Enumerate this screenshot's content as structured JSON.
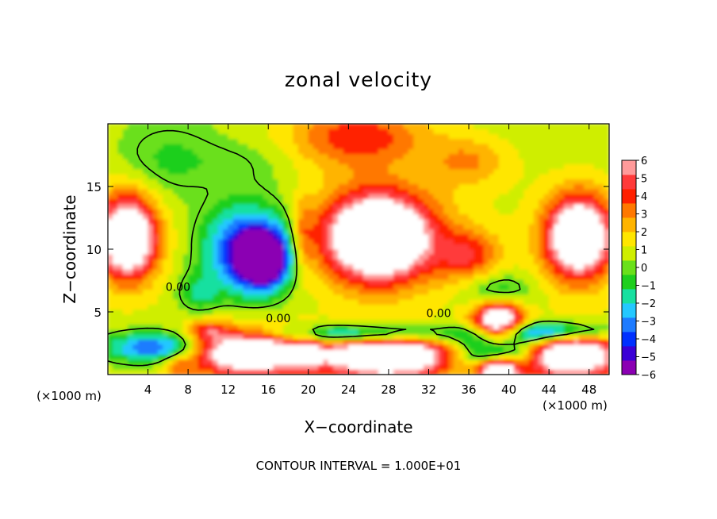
{
  "title": "zonal velocity",
  "footer_note": "CONTOUR INTERVAL = 1.000E+01",
  "colors": {
    "field_palette": [
      "#8b00b3",
      "#3a00d6",
      "#0030ff",
      "#1e7bff",
      "#24c8ff",
      "#18e0a0",
      "#1ecf1e",
      "#6ae01a",
      "#cfee00",
      "#ffe600",
      "#ffb400",
      "#ff7800",
      "#ff2000",
      "#ff3a3a",
      "#ff9a9a"
    ],
    "background": "#ffffff"
  },
  "chart_data": {
    "type": "heatmap",
    "title": "zonal velocity",
    "xlabel": "X−coordinate",
    "ylabel": "Z−coordinate",
    "x_unit_left": "(×1000 m)",
    "x_unit_right": "(×1000 m)",
    "xlim": [
      0,
      50
    ],
    "ylim": [
      0,
      20
    ],
    "x_ticks": [
      4,
      8,
      12,
      16,
      20,
      24,
      28,
      32,
      36,
      40,
      44,
      48
    ],
    "y_ticks": [
      5,
      10,
      15
    ],
    "colorbar": {
      "ticks": [
        6,
        5,
        4,
        3,
        2,
        1,
        0,
        -1,
        -2,
        -3,
        -4,
        -5,
        -6
      ],
      "labels": [
        "6",
        "5",
        "4",
        "3",
        "2",
        "1",
        "0",
        "−1",
        "−2",
        "−3",
        "−4",
        "−5",
        "−6"
      ],
      "range": [
        -6,
        6
      ],
      "extend_above": "white"
    },
    "contour_interval": "1.000E+01",
    "contour_labels": [
      {
        "text": "0.00",
        "x": 7,
        "z": 7
      },
      {
        "text": "0.00",
        "x": 17,
        "z": 4.5
      },
      {
        "text": "0.00",
        "x": 33,
        "z": 4.9
      }
    ],
    "field_blobs": [
      {
        "x": 25,
        "z": 19,
        "sx": 7,
        "sz": 2.5,
        "a": 3.5
      },
      {
        "x": 36,
        "z": 17,
        "sx": 4,
        "sz": 2,
        "a": 2
      },
      {
        "x": 6,
        "z": 17,
        "sx": 5,
        "sz": 3,
        "a": -1.4
      },
      {
        "x": 14,
        "z": 17,
        "sx": 5,
        "sz": 2,
        "a": -0.8
      },
      {
        "x": 14,
        "z": 10,
        "sx": 4.5,
        "sz": 3.5,
        "a": -6
      },
      {
        "x": 15.5,
        "z": 9.2,
        "sx": 2.3,
        "sz": 2,
        "a": -8
      },
      {
        "x": 9,
        "z": 6.5,
        "sx": 2,
        "sz": 1.5,
        "a": -2
      },
      {
        "x": 2,
        "z": 11,
        "sx": 2.8,
        "sz": 3.2,
        "a": 9
      },
      {
        "x": 47,
        "z": 11,
        "sx": 3.2,
        "sz": 3.2,
        "a": 9
      },
      {
        "x": 27,
        "z": 11,
        "sx": 5.5,
        "sz": 3.5,
        "a": 10
      },
      {
        "x": 19.5,
        "z": 11,
        "sx": 1,
        "sz": 3,
        "a": 2
      },
      {
        "x": 36,
        "z": 9.5,
        "sx": 3,
        "sz": 2,
        "a": 3
      },
      {
        "x": 39,
        "z": 4,
        "sx": 2.5,
        "sz": 2,
        "a": 9
      },
      {
        "x": 39,
        "z": 6.5,
        "sx": 3,
        "sz": 1.5,
        "a": -3
      },
      {
        "x": 39,
        "z": 2,
        "sx": 4,
        "sz": 1.5,
        "a": -7
      },
      {
        "x": 39,
        "z": 0.3,
        "sx": 2,
        "sz": 1,
        "a": 9
      },
      {
        "x": 28,
        "z": 1.5,
        "sx": 7,
        "sz": 1.8,
        "a": 9
      },
      {
        "x": 14,
        "z": 1.8,
        "sx": 6,
        "sz": 1.8,
        "a": 9
      },
      {
        "x": 46,
        "z": 1.5,
        "sx": 5,
        "sz": 1.8,
        "a": 9
      },
      {
        "x": 5,
        "z": 2.2,
        "sx": 5,
        "sz": 1.2,
        "a": -5
      },
      {
        "x": 25,
        "z": 3.2,
        "sx": 10,
        "sz": 0.8,
        "a": -5
      },
      {
        "x": 44,
        "z": 3.4,
        "sx": 6,
        "sz": 0.8,
        "a": -5
      },
      {
        "x": 10,
        "z": 3.5,
        "sx": 2,
        "sz": 0.8,
        "a": 3
      },
      {
        "x": 20,
        "z": 2,
        "sx": 1,
        "sz": 1.5,
        "a": 2
      },
      {
        "x": 7,
        "z": 0.5,
        "sx": 1.5,
        "sz": 1,
        "a": 2
      }
    ],
    "field_base": 1.2,
    "field_base_slope": 0.05,
    "field_base_ref_z": 10,
    "field_base_min": 0.3
  }
}
